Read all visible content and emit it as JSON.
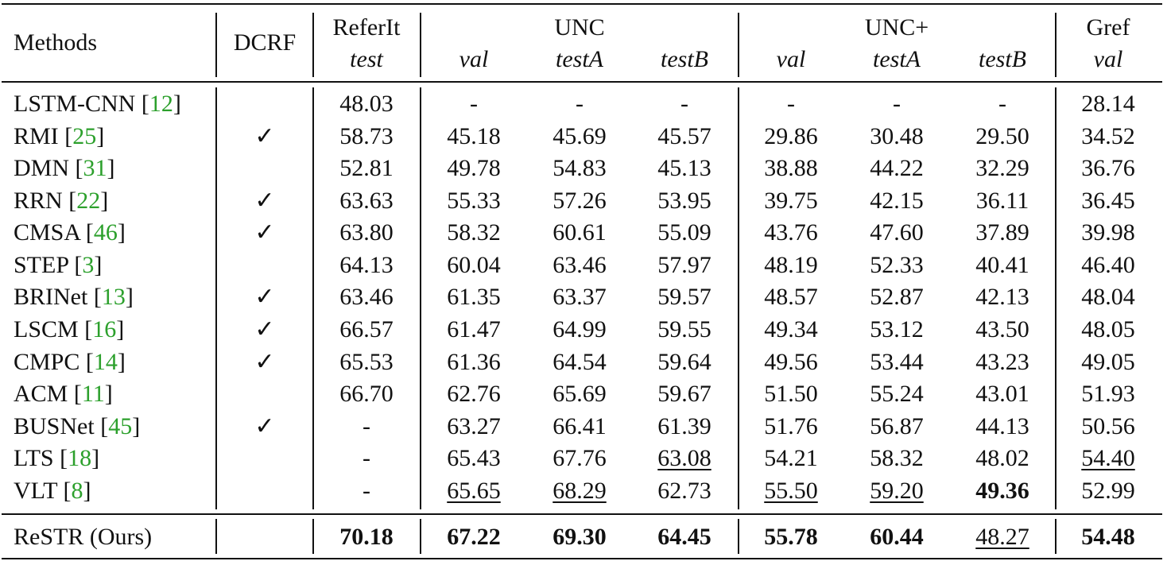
{
  "table": {
    "header": {
      "groups": [
        "Methods",
        "DCRF",
        "ReferIt",
        "UNC",
        "UNC+",
        "Gref"
      ],
      "subheaders": [
        "test",
        "val",
        "testA",
        "testB",
        "val",
        "testA",
        "testB",
        "val"
      ]
    },
    "rows": [
      {
        "method": "LSTM-CNN",
        "ref": "[12]",
        "dcrf": null,
        "values": [
          "48.03",
          "-",
          "-",
          "-",
          "-",
          "-",
          "-",
          "28.14"
        ]
      },
      {
        "method": "RMI",
        "ref": "[25]",
        "dcrf": "✓",
        "values": [
          "58.73",
          "45.18",
          "45.69",
          "45.57",
          "29.86",
          "30.48",
          "29.50",
          "34.52"
        ]
      },
      {
        "method": "DMN",
        "ref": "[31]",
        "dcrf": null,
        "values": [
          "52.81",
          "49.78",
          "54.83",
          "45.13",
          "38.88",
          "44.22",
          "32.29",
          "36.76"
        ]
      },
      {
        "method": "RRN",
        "ref": "[22]",
        "dcrf": "✓",
        "values": [
          "63.63",
          "55.33",
          "57.26",
          "53.95",
          "39.75",
          "42.15",
          "36.11",
          "36.45"
        ]
      },
      {
        "method": "CMSA",
        "ref": "[46]",
        "dcrf": "✓",
        "values": [
          "63.80",
          "58.32",
          "60.61",
          "55.09",
          "43.76",
          "47.60",
          "37.89",
          "39.98"
        ]
      },
      {
        "method": "STEP",
        "ref": "[3]",
        "dcrf": null,
        "values": [
          "64.13",
          "60.04",
          "63.46",
          "57.97",
          "48.19",
          "52.33",
          "40.41",
          "46.40"
        ]
      },
      {
        "method": "BRINet",
        "ref": "[13]",
        "dcrf": "✓",
        "values": [
          "63.46",
          "61.35",
          "63.37",
          "59.57",
          "48.57",
          "52.87",
          "42.13",
          "48.04"
        ]
      },
      {
        "method": "LSCM",
        "ref": "[16]",
        "dcrf": "✓",
        "values": [
          "66.57",
          "61.47",
          "64.99",
          "59.55",
          "49.34",
          "53.12",
          "43.50",
          "48.05"
        ]
      },
      {
        "method": "CMPC",
        "ref": "[14]",
        "dcrf": "✓",
        "values": [
          "65.53",
          "61.36",
          "64.54",
          "59.64",
          "49.56",
          "53.44",
          "43.23",
          "49.05"
        ]
      },
      {
        "method": "ACM",
        "ref": "[11]",
        "dcrf": null,
        "values": [
          "66.70",
          "62.76",
          "65.69",
          "59.67",
          "51.50",
          "55.24",
          "43.01",
          "51.93"
        ]
      },
      {
        "method": "BUSNet",
        "ref": "[45]",
        "dcrf": "✓",
        "values": [
          "-",
          "63.27",
          "66.41",
          "61.39",
          "51.76",
          "56.87",
          "44.13",
          "50.56"
        ]
      },
      {
        "method": "LTS",
        "ref": "[18]",
        "dcrf": null,
        "values": [
          "-",
          "65.43",
          "67.76",
          "63.08",
          "54.21",
          "58.32",
          "48.02",
          "54.40"
        ],
        "underline": [
          3,
          7
        ]
      },
      {
        "method": "VLT",
        "ref": "[8]",
        "dcrf": null,
        "values": [
          "-",
          "65.65",
          "68.29",
          "62.73",
          "55.50",
          "59.20",
          "49.36",
          "52.99"
        ],
        "underline": [
          1,
          2,
          4,
          5
        ],
        "bold": [
          6
        ]
      },
      {
        "method": "ReSTR (Ours)",
        "ref": null,
        "dcrf": null,
        "values": [
          "70.18",
          "67.22",
          "69.30",
          "64.45",
          "55.78",
          "60.44",
          "48.27",
          "54.48"
        ],
        "bold": [
          0,
          1,
          2,
          3,
          4,
          5,
          7
        ],
        "underline": [
          6
        ]
      }
    ]
  }
}
